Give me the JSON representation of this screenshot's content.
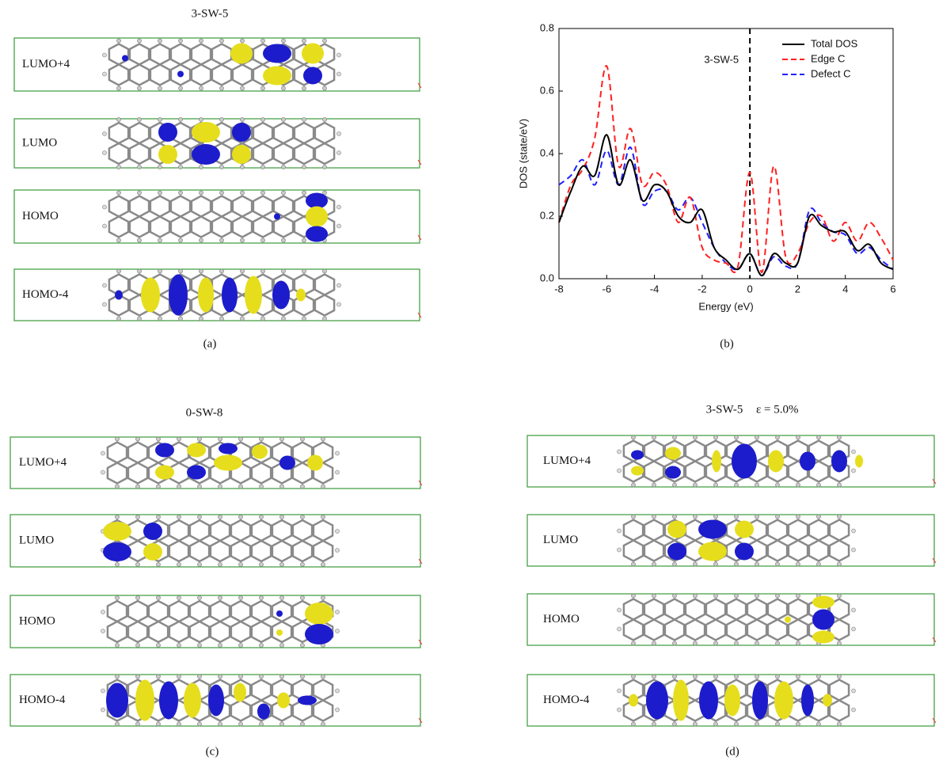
{
  "panels": {
    "a": {
      "title": "3-SW-5",
      "orbitals": [
        "LUMO+4",
        "LUMO",
        "HOMO",
        "HOMO-4"
      ],
      "caption": "(a)"
    },
    "c": {
      "title": "0-SW-8",
      "orbitals": [
        "LUMO+4",
        "LUMO",
        "HOMO",
        "HOMO-4"
      ],
      "caption": "(c)"
    },
    "d": {
      "title": "3-SW-5",
      "strain": "ε = 5.0%",
      "orbitals": [
        "LUMO+4",
        "LUMO",
        "HOMO",
        "HOMO-4"
      ],
      "caption": "(d)"
    }
  },
  "chart_data": {
    "type": "line",
    "annotation": "3-SW-5",
    "caption": "(b)",
    "x_label": "Energy (eV)",
    "y_label": "DOS (state/eV)",
    "x": [
      -8,
      -7.5,
      -7,
      -6.5,
      -6,
      -5.5,
      -5,
      -4.5,
      -4,
      -3.5,
      -3,
      -2.5,
      -2,
      -1.5,
      -1,
      -0.5,
      0,
      0.5,
      1,
      1.5,
      2,
      2.5,
      3,
      3.5,
      4,
      4.5,
      5,
      5.5,
      6
    ],
    "series": [
      {
        "name": "Total DOS",
        "color": "#000000",
        "dash": "solid",
        "values": [
          0.18,
          0.28,
          0.36,
          0.33,
          0.46,
          0.3,
          0.38,
          0.25,
          0.3,
          0.28,
          0.2,
          0.18,
          0.22,
          0.1,
          0.06,
          0.03,
          0.08,
          0.01,
          0.08,
          0.05,
          0.05,
          0.2,
          0.17,
          0.15,
          0.15,
          0.09,
          0.11,
          0.05,
          0.03
        ]
      },
      {
        "name": "Edge C",
        "color": "#ff2020",
        "dash": "dashed",
        "values": [
          0.18,
          0.3,
          0.35,
          0.45,
          0.68,
          0.36,
          0.48,
          0.3,
          0.34,
          0.3,
          0.18,
          0.26,
          0.1,
          0.06,
          0.05,
          0.04,
          0.34,
          0.02,
          0.36,
          0.07,
          0.08,
          0.18,
          0.2,
          0.12,
          0.18,
          0.12,
          0.18,
          0.13,
          0.06
        ]
      },
      {
        "name": "Defect C",
        "color": "#2020ff",
        "dash": "dashed",
        "values": [
          0.3,
          0.33,
          0.38,
          0.3,
          0.41,
          0.3,
          0.42,
          0.24,
          0.28,
          0.28,
          0.22,
          0.26,
          0.18,
          0.1,
          0.05,
          0.03,
          0.08,
          0.01,
          0.07,
          0.04,
          0.05,
          0.22,
          0.18,
          0.15,
          0.14,
          0.08,
          0.1,
          0.06,
          0.03
        ]
      }
    ],
    "reference_line_x": 0,
    "xlim": [
      -8,
      6
    ],
    "xticks": [
      -8,
      -6,
      -4,
      -2,
      0,
      2,
      4,
      6
    ],
    "ylim": [
      0,
      0.8
    ],
    "yticks": [
      {
        "value": 0,
        "label": "0.0"
      },
      0.2,
      0.4,
      0.6,
      0.8
    ],
    "legend": "upper right"
  }
}
